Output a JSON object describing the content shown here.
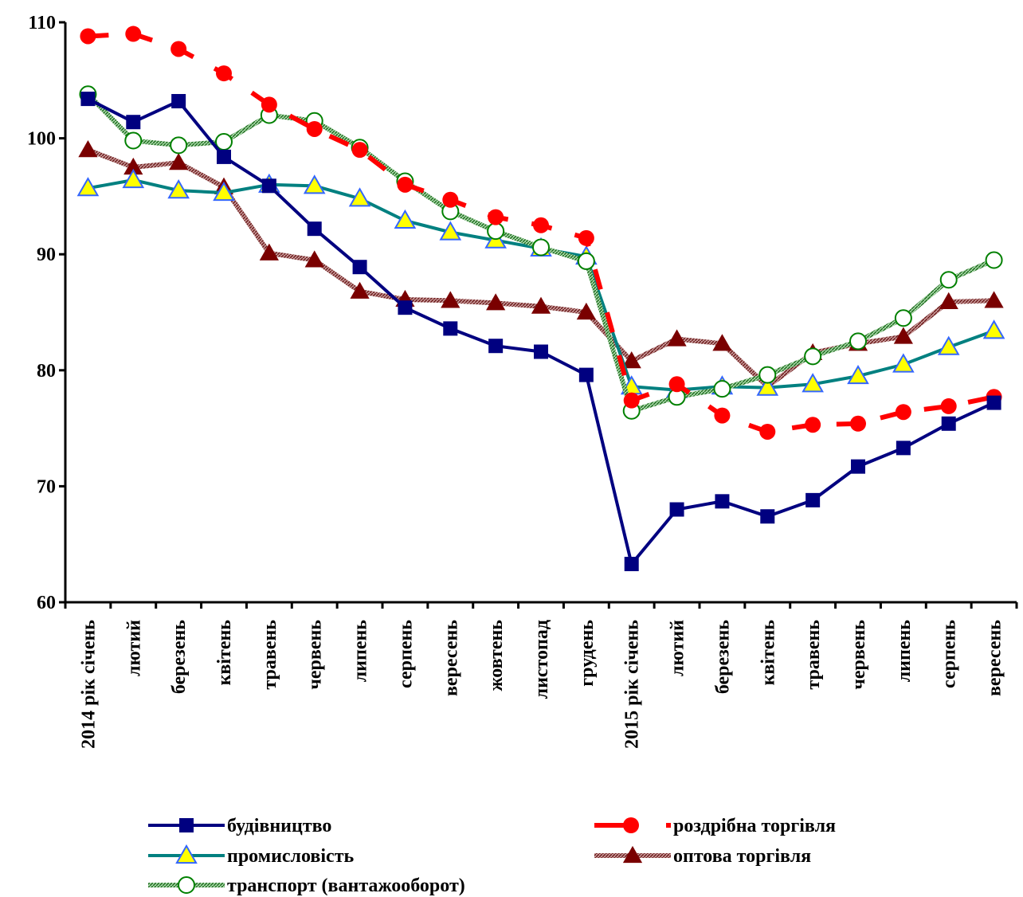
{
  "chart_data": {
    "type": "line",
    "categories": [
      "2014 рік січень",
      "лютий",
      "березень",
      "квітень",
      "травень",
      "червень",
      "липень",
      "серпень",
      "вересень",
      "жовтень",
      "листопад",
      "грудень",
      "2015 рік січень",
      "лютий",
      "березень",
      "квітень",
      "травень",
      "червень",
      "липень",
      "серпень",
      "вересень"
    ],
    "ylim": [
      60,
      110
    ],
    "yticks": [
      "60",
      "70",
      "80",
      "90",
      "100",
      "110"
    ],
    "grid": false,
    "legend_position": "bottom",
    "series": [
      {
        "name": "будівництво",
        "color": "#000080",
        "marker": "square",
        "style": "solid",
        "values": [
          103.4,
          101.4,
          103.2,
          98.4,
          95.9,
          92.2,
          88.9,
          85.4,
          83.6,
          82.1,
          81.6,
          79.6,
          63.3,
          68.0,
          68.7,
          67.4,
          68.8,
          71.7,
          73.3,
          75.4,
          77.2
        ]
      },
      {
        "name": "роздрібна торгівля",
        "color": "#ff0000",
        "marker": "circle",
        "style": "dashed",
        "values": [
          108.8,
          109.0,
          107.7,
          105.6,
          102.9,
          100.8,
          99.0,
          96.0,
          94.7,
          93.2,
          92.5,
          91.4,
          77.4,
          78.8,
          76.1,
          74.7,
          75.3,
          75.4,
          76.4,
          76.9,
          77.7
        ]
      },
      {
        "name": "промисловість",
        "color": "#008080",
        "marker": "triangle",
        "style": "solid",
        "values": [
          95.7,
          96.4,
          95.5,
          95.3,
          96.0,
          95.9,
          94.8,
          92.9,
          91.9,
          91.2,
          90.5,
          89.8,
          78.6,
          78.3,
          78.6,
          78.5,
          78.8,
          79.5,
          80.5,
          82.0,
          83.4
        ]
      },
      {
        "name": "оптова торгівля",
        "color": "#8b0000",
        "marker": "triangle",
        "style": "hatched",
        "values": [
          99.0,
          97.5,
          97.9,
          95.8,
          90.1,
          89.5,
          86.8,
          86.1,
          86.0,
          85.8,
          85.5,
          85.0,
          80.8,
          82.7,
          82.3,
          78.6,
          81.5,
          82.3,
          82.9,
          85.9,
          86.0
        ]
      },
      {
        "name": "транспорт (вантажооборот)",
        "color": "#008000",
        "marker": "circle-open",
        "style": "hatched",
        "values": [
          103.8,
          99.8,
          99.4,
          99.7,
          102.0,
          101.5,
          99.2,
          96.3,
          93.7,
          92.0,
          90.6,
          89.4,
          76.5,
          77.7,
          78.4,
          79.6,
          81.2,
          82.5,
          84.5,
          87.8,
          89.5
        ]
      }
    ]
  }
}
